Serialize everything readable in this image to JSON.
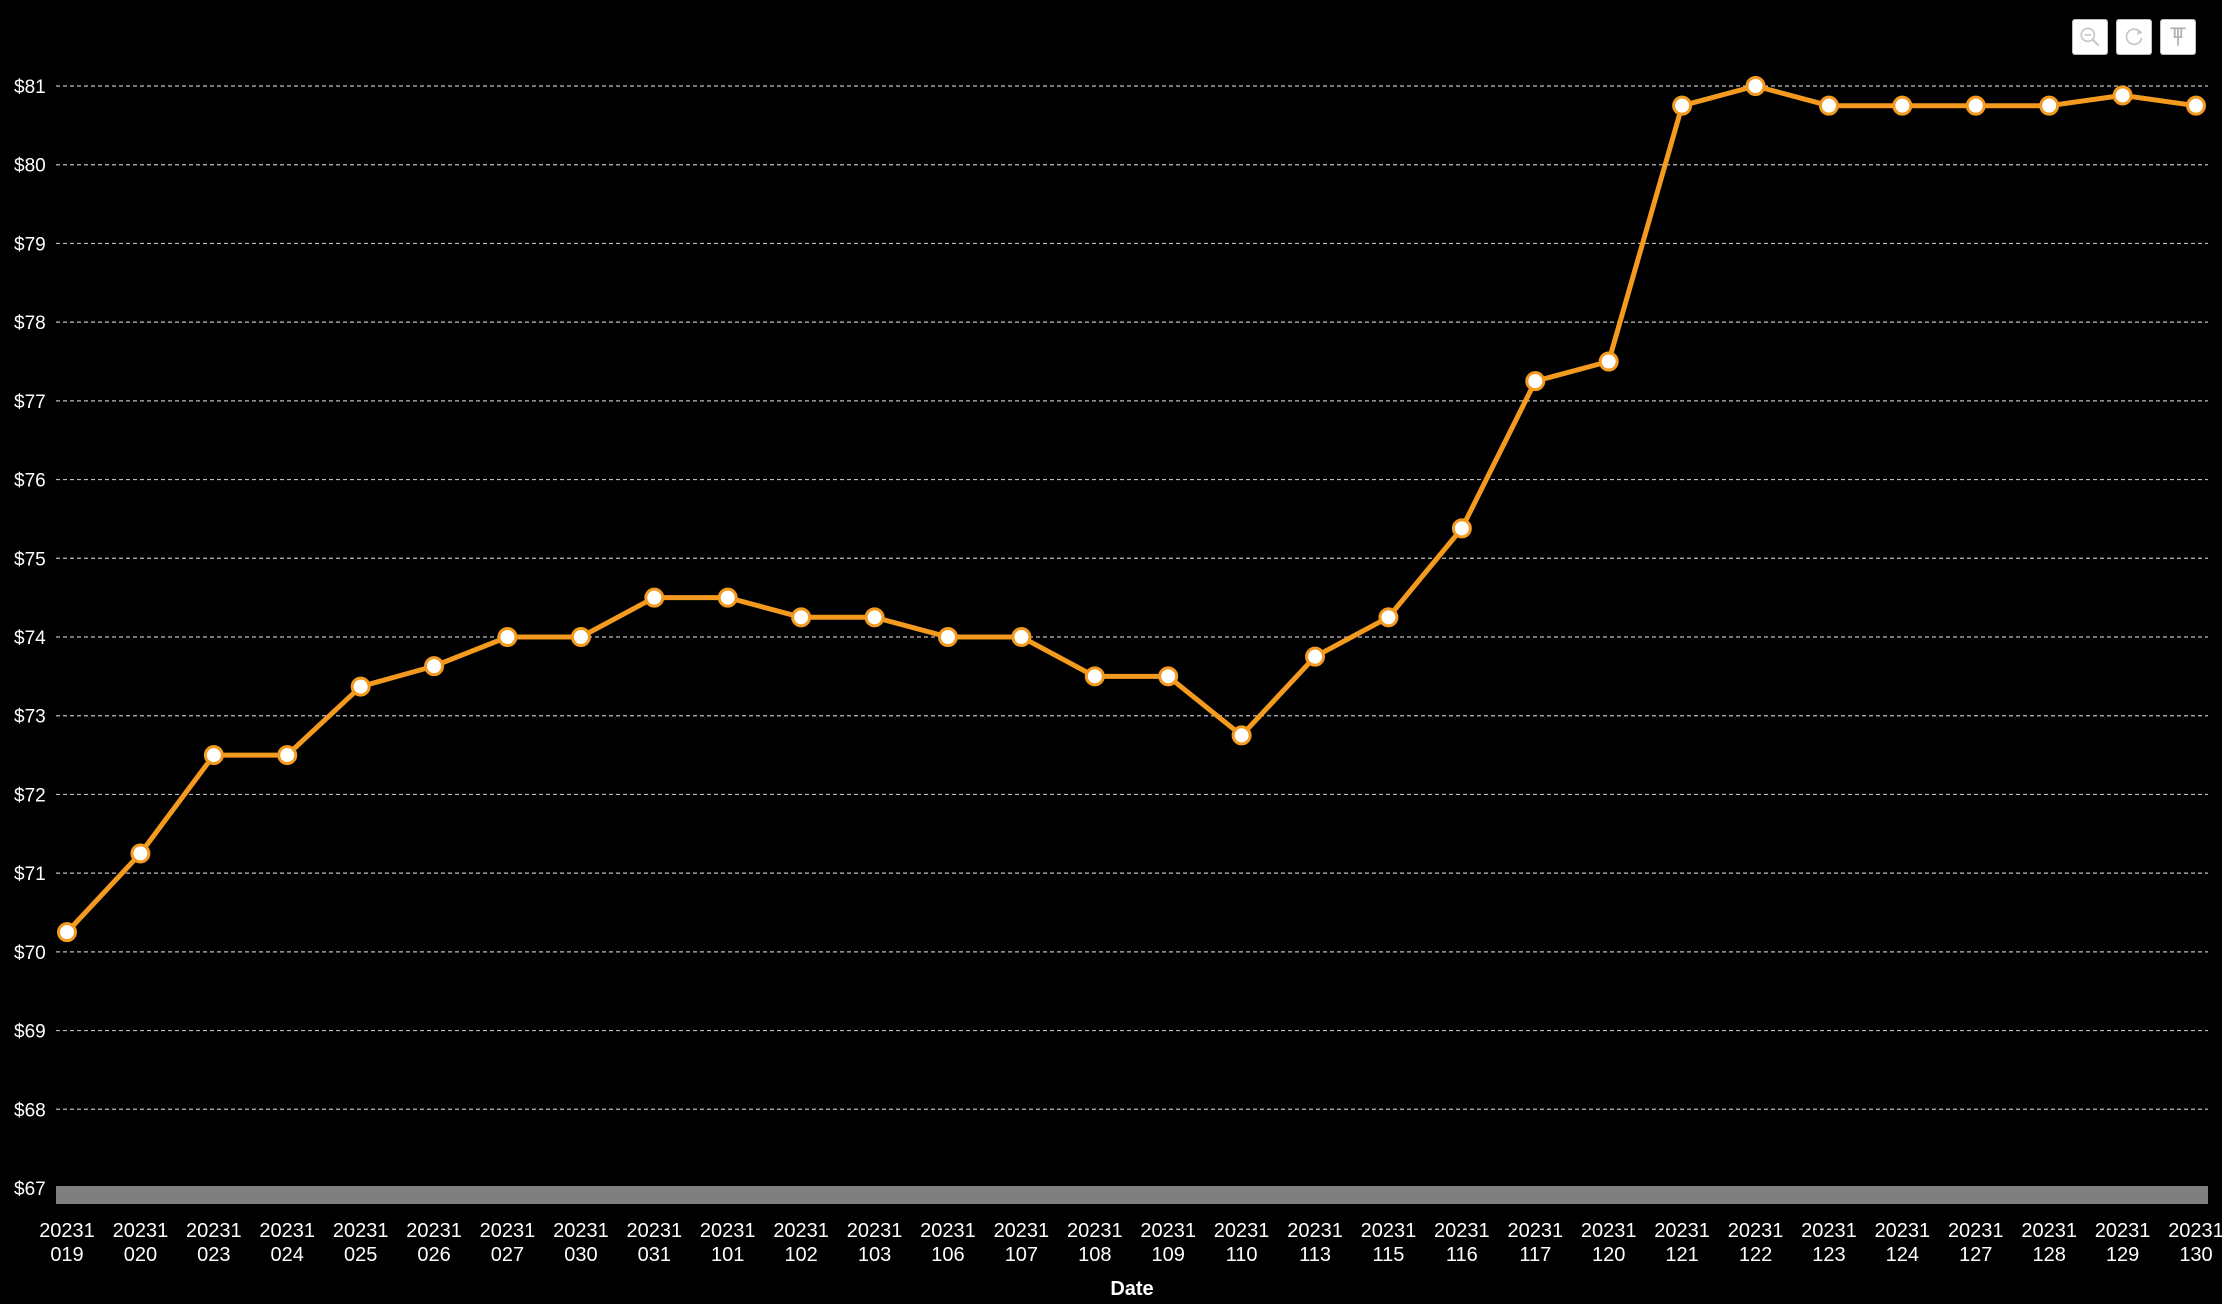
{
  "toolbar": {
    "icons": [
      "zoom-out-icon",
      "reset-icon",
      "pin-icon"
    ]
  },
  "chart_data": {
    "type": "line",
    "xlabel": "Date",
    "ylabel": "",
    "ylim": [
      67,
      81
    ],
    "y_tick_values": [
      67,
      68,
      69,
      70,
      71,
      72,
      73,
      74,
      75,
      76,
      77,
      78,
      79,
      80,
      81
    ],
    "y_tick_labels": [
      "$67",
      "$68",
      "$69",
      "$70",
      "$71",
      "$72",
      "$73",
      "$74",
      "$75",
      "$76",
      "$77",
      "$78",
      "$79",
      "$80",
      "$81"
    ],
    "grid": true,
    "categories": [
      "20231019",
      "20231020",
      "20231023",
      "20231024",
      "20231025",
      "20231026",
      "20231027",
      "20231030",
      "20231031",
      "20231101",
      "20231102",
      "20231103",
      "20231106",
      "20231107",
      "20231108",
      "20231109",
      "20231110",
      "20231113",
      "20231115",
      "20231116",
      "20231117",
      "20231120",
      "20231121",
      "20231122",
      "20231123",
      "20231124",
      "20231127",
      "20231128",
      "20231129",
      "20231130"
    ],
    "series": [
      {
        "color": "#f39a1f",
        "values": [
          70.25,
          71.25,
          72.5,
          72.5,
          73.37,
          73.63,
          74.0,
          74.0,
          74.5,
          74.5,
          74.25,
          74.25,
          74.0,
          74.0,
          73.5,
          73.5,
          72.75,
          73.75,
          74.25,
          75.38,
          77.25,
          77.5,
          80.75,
          81.0,
          80.75,
          80.75,
          80.75,
          80.75,
          80.88,
          80.75
        ]
      }
    ]
  }
}
